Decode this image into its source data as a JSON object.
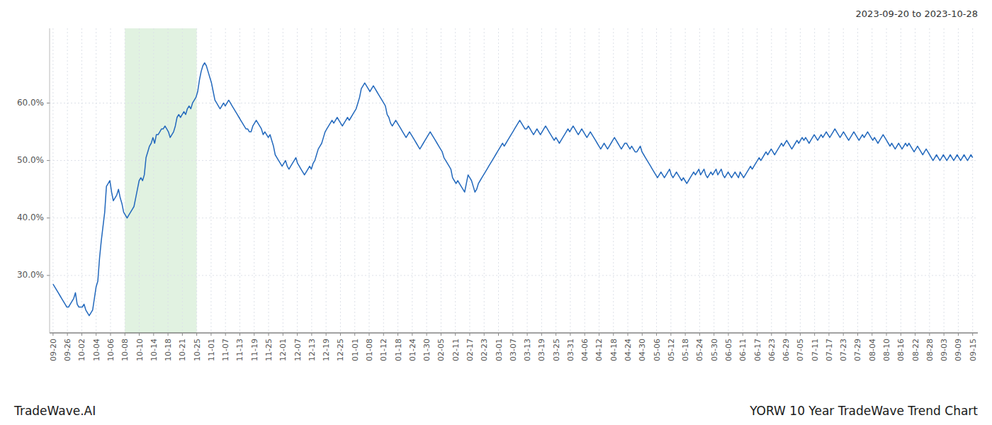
{
  "chart_data": {
    "type": "line",
    "title": "YORW 10 Year TradeWave Trend Chart",
    "subtitle": "2023-09-20 to 2023-10-28",
    "annotations": [
      {
        "text": "TradeWave.AI"
      }
    ],
    "color": "#2369bd",
    "grid": true,
    "spans": [
      {
        "x0": 41.71875,
        "x1": 83.4375,
        "color": "#d4ecd4"
      }
    ],
    "xlim": [
      -2,
      537
    ],
    "xticks": [
      {
        "value": 0,
        "label": "09-20"
      },
      {
        "value": 8.34375,
        "label": "09-26"
      },
      {
        "value": 16.6875,
        "label": "10-02"
      },
      {
        "value": 25.03125,
        "label": "10-04"
      },
      {
        "value": 33.375,
        "label": "10-06"
      },
      {
        "value": 41.71875,
        "label": "10-08"
      },
      {
        "value": 50.0625,
        "label": "10-10"
      },
      {
        "value": 58.40625,
        "label": "10-14"
      },
      {
        "value": 66.75,
        "label": "10-18"
      },
      {
        "value": 75.09375,
        "label": "10-21"
      },
      {
        "value": 83.4375,
        "label": "10-25"
      },
      {
        "value": 91.78125,
        "label": "11-01"
      },
      {
        "value": 100.125,
        "label": "11-07"
      },
      {
        "value": 108.46875,
        "label": "11-13"
      },
      {
        "value": 116.8125,
        "label": "11-19"
      },
      {
        "value": 125.15625,
        "label": "11-25"
      },
      {
        "value": 133.5,
        "label": "12-01"
      },
      {
        "value": 141.84375,
        "label": "12-07"
      },
      {
        "value": 150.1875,
        "label": "12-13"
      },
      {
        "value": 158.53125,
        "label": "12-19"
      },
      {
        "value": 166.875,
        "label": "12-25"
      },
      {
        "value": 175.21875,
        "label": "01-01"
      },
      {
        "value": 183.5625,
        "label": "01-08"
      },
      {
        "value": 191.90625,
        "label": "01-12"
      },
      {
        "value": 200.25,
        "label": "01-18"
      },
      {
        "value": 208.59375,
        "label": "01-24"
      },
      {
        "value": 216.9375,
        "label": "01-30"
      },
      {
        "value": 225.28125,
        "label": "02-05"
      },
      {
        "value": 233.625,
        "label": "02-11"
      },
      {
        "value": 241.96875,
        "label": "02-17"
      },
      {
        "value": 250.3125,
        "label": "02-23"
      },
      {
        "value": 258.65625,
        "label": "03-01"
      },
      {
        "value": 267,
        "label": "03-07"
      },
      {
        "value": 275.34375,
        "label": "03-13"
      },
      {
        "value": 283.6875,
        "label": "03-19"
      },
      {
        "value": 292.03125,
        "label": "03-25"
      },
      {
        "value": 300.375,
        "label": "03-31"
      },
      {
        "value": 308.71875,
        "label": "04-06"
      },
      {
        "value": 317.0625,
        "label": "04-12"
      },
      {
        "value": 325.40625,
        "label": "04-18"
      },
      {
        "value": 333.75,
        "label": "04-24"
      },
      {
        "value": 342.09375,
        "label": "04-30"
      },
      {
        "value": 350.4375,
        "label": "05-06"
      },
      {
        "value": 358.78125,
        "label": "05-12"
      },
      {
        "value": 367.125,
        "label": "05-18"
      },
      {
        "value": 375.46875,
        "label": "05-24"
      },
      {
        "value": 383.8125,
        "label": "05-30"
      },
      {
        "value": 392.15625,
        "label": "06-05"
      },
      {
        "value": 400.5,
        "label": "06-11"
      },
      {
        "value": 408.84375,
        "label": "06-17"
      },
      {
        "value": 417.1875,
        "label": "06-23"
      },
      {
        "value": 425.53125,
        "label": "06-29"
      },
      {
        "value": 433.875,
        "label": "07-05"
      },
      {
        "value": 442.21875,
        "label": "07-11"
      },
      {
        "value": 450.5625,
        "label": "07-17"
      },
      {
        "value": 458.90625,
        "label": "07-23"
      },
      {
        "value": 467.25,
        "label": "07-29"
      },
      {
        "value": 475.59375,
        "label": "08-04"
      },
      {
        "value": 483.9375,
        "label": "08-10"
      },
      {
        "value": 492.28125,
        "label": "08-16"
      },
      {
        "value": 500.625,
        "label": "08-22"
      },
      {
        "value": 508.96875,
        "label": "08-28"
      },
      {
        "value": 517.3125,
        "label": "09-03"
      },
      {
        "value": 525.65625,
        "label": "09-09"
      },
      {
        "value": 534,
        "label": "09-15"
      }
    ],
    "ylim": [
      20.0,
      73.0
    ],
    "yticks": [
      {
        "value": 30.0,
        "label": "30.0%"
      },
      {
        "value": 40.0,
        "label": "40.0%"
      },
      {
        "value": 50.0,
        "label": "50.0%"
      },
      {
        "value": 60.0,
        "label": "60.0%"
      }
    ],
    "values": [
      28.5,
      28.0,
      27.5,
      27.0,
      26.5,
      26.0,
      25.5,
      25.0,
      24.5,
      24.5,
      25.0,
      25.5,
      26.0,
      27.0,
      25.0,
      24.5,
      24.5,
      24.5,
      25.0,
      24.0,
      23.5,
      23.0,
      23.5,
      24.0,
      26.0,
      28.0,
      29.0,
      33.0,
      36.0,
      38.5,
      41.0,
      45.5,
      46.0,
      46.5,
      44.5,
      43.0,
      43.5,
      44.0,
      45.0,
      43.5,
      42.5,
      41.0,
      40.5,
      40.0,
      40.5,
      41.0,
      41.5,
      42.0,
      43.5,
      45.0,
      46.5,
      47.0,
      46.5,
      47.5,
      50.5,
      51.5,
      52.5,
      53.0,
      54.0,
      53.0,
      54.5,
      54.5,
      55.0,
      55.5,
      55.5,
      56.0,
      55.5,
      55.0,
      54.0,
      54.5,
      55.0,
      56.0,
      57.5,
      58.0,
      57.5,
      58.0,
      58.5,
      58.0,
      59.0,
      59.5,
      59.0,
      60.0,
      60.5,
      61.0,
      62.0,
      64.0,
      65.5,
      66.5,
      67.0,
      66.5,
      65.5,
      64.5,
      63.5,
      62.0,
      60.5,
      60.0,
      59.5,
      59.0,
      59.5,
      60.0,
      59.5,
      60.0,
      60.5,
      60.0,
      59.5,
      59.0,
      58.5,
      58.0,
      57.5,
      57.0,
      56.5,
      56.0,
      55.5,
      55.5,
      55.0,
      55.0,
      56.0,
      56.5,
      57.0,
      56.5,
      56.0,
      55.5,
      54.5,
      55.0,
      54.5,
      54.0,
      54.5,
      53.5,
      52.5,
      51.0,
      50.5,
      50.0,
      49.5,
      49.0,
      49.5,
      50.0,
      49.0,
      48.5,
      49.0,
      49.5,
      50.0,
      50.5,
      49.5,
      49.0,
      48.5,
      48.0,
      47.5,
      48.0,
      48.5,
      49.0,
      48.5,
      49.5,
      50.0,
      51.0,
      52.0,
      52.5,
      53.0,
      54.0,
      55.0,
      55.5,
      56.0,
      56.5,
      57.0,
      56.5,
      57.0,
      57.5,
      57.0,
      56.5,
      56.0,
      56.5,
      57.0,
      57.5,
      57.0,
      57.5,
      58.0,
      58.5,
      59.0,
      60.0,
      61.0,
      62.5,
      63.0,
      63.5,
      63.0,
      62.5,
      62.0,
      62.5,
      63.0,
      62.5,
      62.0,
      61.5,
      61.0,
      60.5,
      60.0,
      59.5,
      58.0,
      57.5,
      56.5,
      56.0,
      56.5,
      57.0,
      56.5,
      56.0,
      55.5,
      55.0,
      54.5,
      54.0,
      54.5,
      55.0,
      54.5,
      54.0,
      53.5,
      53.0,
      52.5,
      52.0,
      52.5,
      53.0,
      53.5,
      54.0,
      54.5,
      55.0,
      54.5,
      54.0,
      53.5,
      53.0,
      52.5,
      52.0,
      51.5,
      50.5,
      50.0,
      49.5,
      49.0,
      48.5,
      47.0,
      46.5,
      46.0,
      46.5,
      46.0,
      45.5,
      45.0,
      44.5,
      46.0,
      47.5,
      47.0,
      46.5,
      45.5,
      44.5,
      45.0,
      46.0,
      46.5,
      47.0,
      47.5,
      48.0,
      48.5,
      49.0,
      49.5,
      50.0,
      50.5,
      51.0,
      51.5,
      52.0,
      52.5,
      53.0,
      52.5,
      53.0,
      53.5,
      54.0,
      54.5,
      55.0,
      55.5,
      56.0,
      56.5,
      57.0,
      56.5,
      56.0,
      55.5,
      55.5,
      56.0,
      55.5,
      55.0,
      54.5,
      55.0,
      55.5,
      55.0,
      54.5,
      55.0,
      55.5,
      56.0,
      55.5,
      55.0,
      54.5,
      54.0,
      53.5,
      54.0,
      53.5,
      53.0,
      53.5,
      54.0,
      54.5,
      55.0,
      55.5,
      55.0,
      55.5,
      56.0,
      55.5,
      55.0,
      54.5,
      55.0,
      55.5,
      55.0,
      54.5,
      54.0,
      54.5,
      55.0,
      54.5,
      54.0,
      53.5,
      53.0,
      52.5,
      52.0,
      52.5,
      53.0,
      52.5,
      52.0,
      52.5,
      53.0,
      53.5,
      54.0,
      53.5,
      53.0,
      52.5,
      52.0,
      52.5,
      53.0,
      53.0,
      52.5,
      52.0,
      52.5,
      52.0,
      51.5,
      51.5,
      52.0,
      52.5,
      51.5,
      51.0,
      50.5,
      50.0,
      49.5,
      49.0,
      48.5,
      48.0,
      47.5,
      47.0,
      47.5,
      48.0,
      47.5,
      47.0,
      47.5,
      48.0,
      48.5,
      47.5,
      47.0,
      47.5,
      48.0,
      47.5,
      47.0,
      46.5,
      47.0,
      46.5,
      46.0,
      46.5,
      47.0,
      47.5,
      48.0,
      47.5,
      48.0,
      48.5,
      47.5,
      48.0,
      48.5,
      47.5,
      47.0,
      47.5,
      48.0,
      47.5,
      48.0,
      48.5,
      47.5,
      48.0,
      48.5,
      47.5,
      47.0,
      47.5,
      48.0,
      47.5,
      47.0,
      47.5,
      48.0,
      47.5,
      47.0,
      48.0,
      47.5,
      47.0,
      47.5,
      48.0,
      48.5,
      49.0,
      48.5,
      49.0,
      49.5,
      50.0,
      50.5,
      50.0,
      50.5,
      51.0,
      51.5,
      51.0,
      51.5,
      52.0,
      51.5,
      51.0,
      51.5,
      52.0,
      52.5,
      53.0,
      52.5,
      53.0,
      53.5,
      53.0,
      52.5,
      52.0,
      52.5,
      53.0,
      53.5,
      53.0,
      53.5,
      54.0,
      53.5,
      54.0,
      53.5,
      53.0,
      53.5,
      54.0,
      54.5,
      54.0,
      53.5,
      54.0,
      54.5,
      54.0,
      54.5,
      55.0,
      54.5,
      54.0,
      54.5,
      55.0,
      55.5,
      55.0,
      54.5,
      54.0,
      54.5,
      55.0,
      54.5,
      54.0,
      53.5,
      54.0,
      54.5,
      55.0,
      54.5,
      54.0,
      53.5,
      54.0,
      54.5,
      54.0,
      54.5,
      55.0,
      54.5,
      54.0,
      53.5,
      54.0,
      53.5,
      53.0,
      53.5,
      54.0,
      54.5,
      54.0,
      53.5,
      53.0,
      52.5,
      53.0,
      52.5,
      52.0,
      52.5,
      53.0,
      52.5,
      52.0,
      52.5,
      53.0,
      52.5,
      53.0,
      52.5,
      52.0,
      51.5,
      52.0,
      52.5,
      52.0,
      51.5,
      51.0,
      51.5,
      52.0,
      51.5,
      51.0,
      50.5,
      50.0,
      50.5,
      51.0,
      50.5,
      50.0,
      50.5,
      51.0,
      50.5,
      50.0,
      50.5,
      51.0,
      50.5,
      50.0,
      50.5,
      51.0,
      50.5,
      50.0,
      50.5,
      51.0,
      50.5,
      50.0,
      50.5,
      51.0,
      50.5
    ]
  }
}
